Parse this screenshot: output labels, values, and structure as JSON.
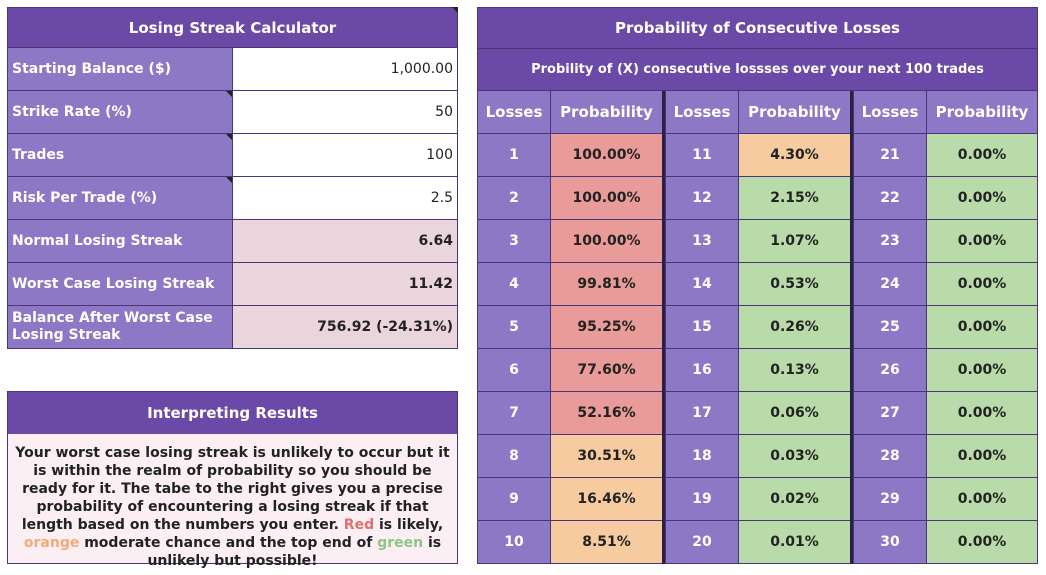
{
  "calculator": {
    "title": "Losing Streak Calculator",
    "inputs": [
      {
        "label": "Starting Balance ($)",
        "value": "1,000.00"
      },
      {
        "label": "Strike Rate (%)",
        "value": "50"
      },
      {
        "label": "Trades",
        "value": "100"
      },
      {
        "label": "Risk Per Trade (%)",
        "value": "2.5"
      }
    ],
    "results": [
      {
        "label": "Normal Losing Streak",
        "value": "6.64"
      },
      {
        "label": "Worst Case Losing Streak",
        "value": "11.42"
      },
      {
        "label": "Balance After Worst Case Losing Streak",
        "value": "756.92 (-24.31%)"
      }
    ]
  },
  "interpreting": {
    "title": "Interpreting Results",
    "text_part1": "Your worst case losing streak is unlikely to occur but it is within the realm of probability so you should be ready for it. The tabe to the right gives you a precise probability of encountering a losing streak if that length based on the numbers you enter. ",
    "red_word": "Red",
    "text_part2": " is likely, ",
    "orange_word": "orange",
    "text_part3": " moderate chance and the top end of ",
    "green_word": "green",
    "text_part4": " is unlikely but possible!"
  },
  "probability": {
    "title": "Probability of Consecutive Losses",
    "subtitle": "Probility of (X) consecutive lossses over your next 100 trades",
    "col_losses": "Losses",
    "col_probability": "Probability",
    "colors": {
      "red": "#e89b98",
      "orange": "#f6cba0",
      "green": "#b9dba9"
    },
    "rows": [
      {
        "losses": "1",
        "probability": "100.00%",
        "level": "red"
      },
      {
        "losses": "2",
        "probability": "100.00%",
        "level": "red"
      },
      {
        "losses": "3",
        "probability": "100.00%",
        "level": "red"
      },
      {
        "losses": "4",
        "probability": "99.81%",
        "level": "red"
      },
      {
        "losses": "5",
        "probability": "95.25%",
        "level": "red"
      },
      {
        "losses": "6",
        "probability": "77.60%",
        "level": "red"
      },
      {
        "losses": "7",
        "probability": "52.16%",
        "level": "red"
      },
      {
        "losses": "8",
        "probability": "30.51%",
        "level": "orange"
      },
      {
        "losses": "9",
        "probability": "16.46%",
        "level": "orange"
      },
      {
        "losses": "10",
        "probability": "8.51%",
        "level": "orange"
      },
      {
        "losses": "11",
        "probability": "4.30%",
        "level": "orange"
      },
      {
        "losses": "12",
        "probability": "2.15%",
        "level": "green"
      },
      {
        "losses": "13",
        "probability": "1.07%",
        "level": "green"
      },
      {
        "losses": "14",
        "probability": "0.53%",
        "level": "green"
      },
      {
        "losses": "15",
        "probability": "0.26%",
        "level": "green"
      },
      {
        "losses": "16",
        "probability": "0.13%",
        "level": "green"
      },
      {
        "losses": "17",
        "probability": "0.06%",
        "level": "green"
      },
      {
        "losses": "18",
        "probability": "0.03%",
        "level": "green"
      },
      {
        "losses": "19",
        "probability": "0.02%",
        "level": "green"
      },
      {
        "losses": "20",
        "probability": "0.01%",
        "level": "green"
      },
      {
        "losses": "21",
        "probability": "0.00%",
        "level": "green"
      },
      {
        "losses": "22",
        "probability": "0.00%",
        "level": "green"
      },
      {
        "losses": "23",
        "probability": "0.00%",
        "level": "green"
      },
      {
        "losses": "24",
        "probability": "0.00%",
        "level": "green"
      },
      {
        "losses": "25",
        "probability": "0.00%",
        "level": "green"
      },
      {
        "losses": "26",
        "probability": "0.00%",
        "level": "green"
      },
      {
        "losses": "27",
        "probability": "0.00%",
        "level": "green"
      },
      {
        "losses": "28",
        "probability": "0.00%",
        "level": "green"
      },
      {
        "losses": "29",
        "probability": "0.00%",
        "level": "green"
      },
      {
        "losses": "30",
        "probability": "0.00%",
        "level": "green"
      }
    ]
  }
}
